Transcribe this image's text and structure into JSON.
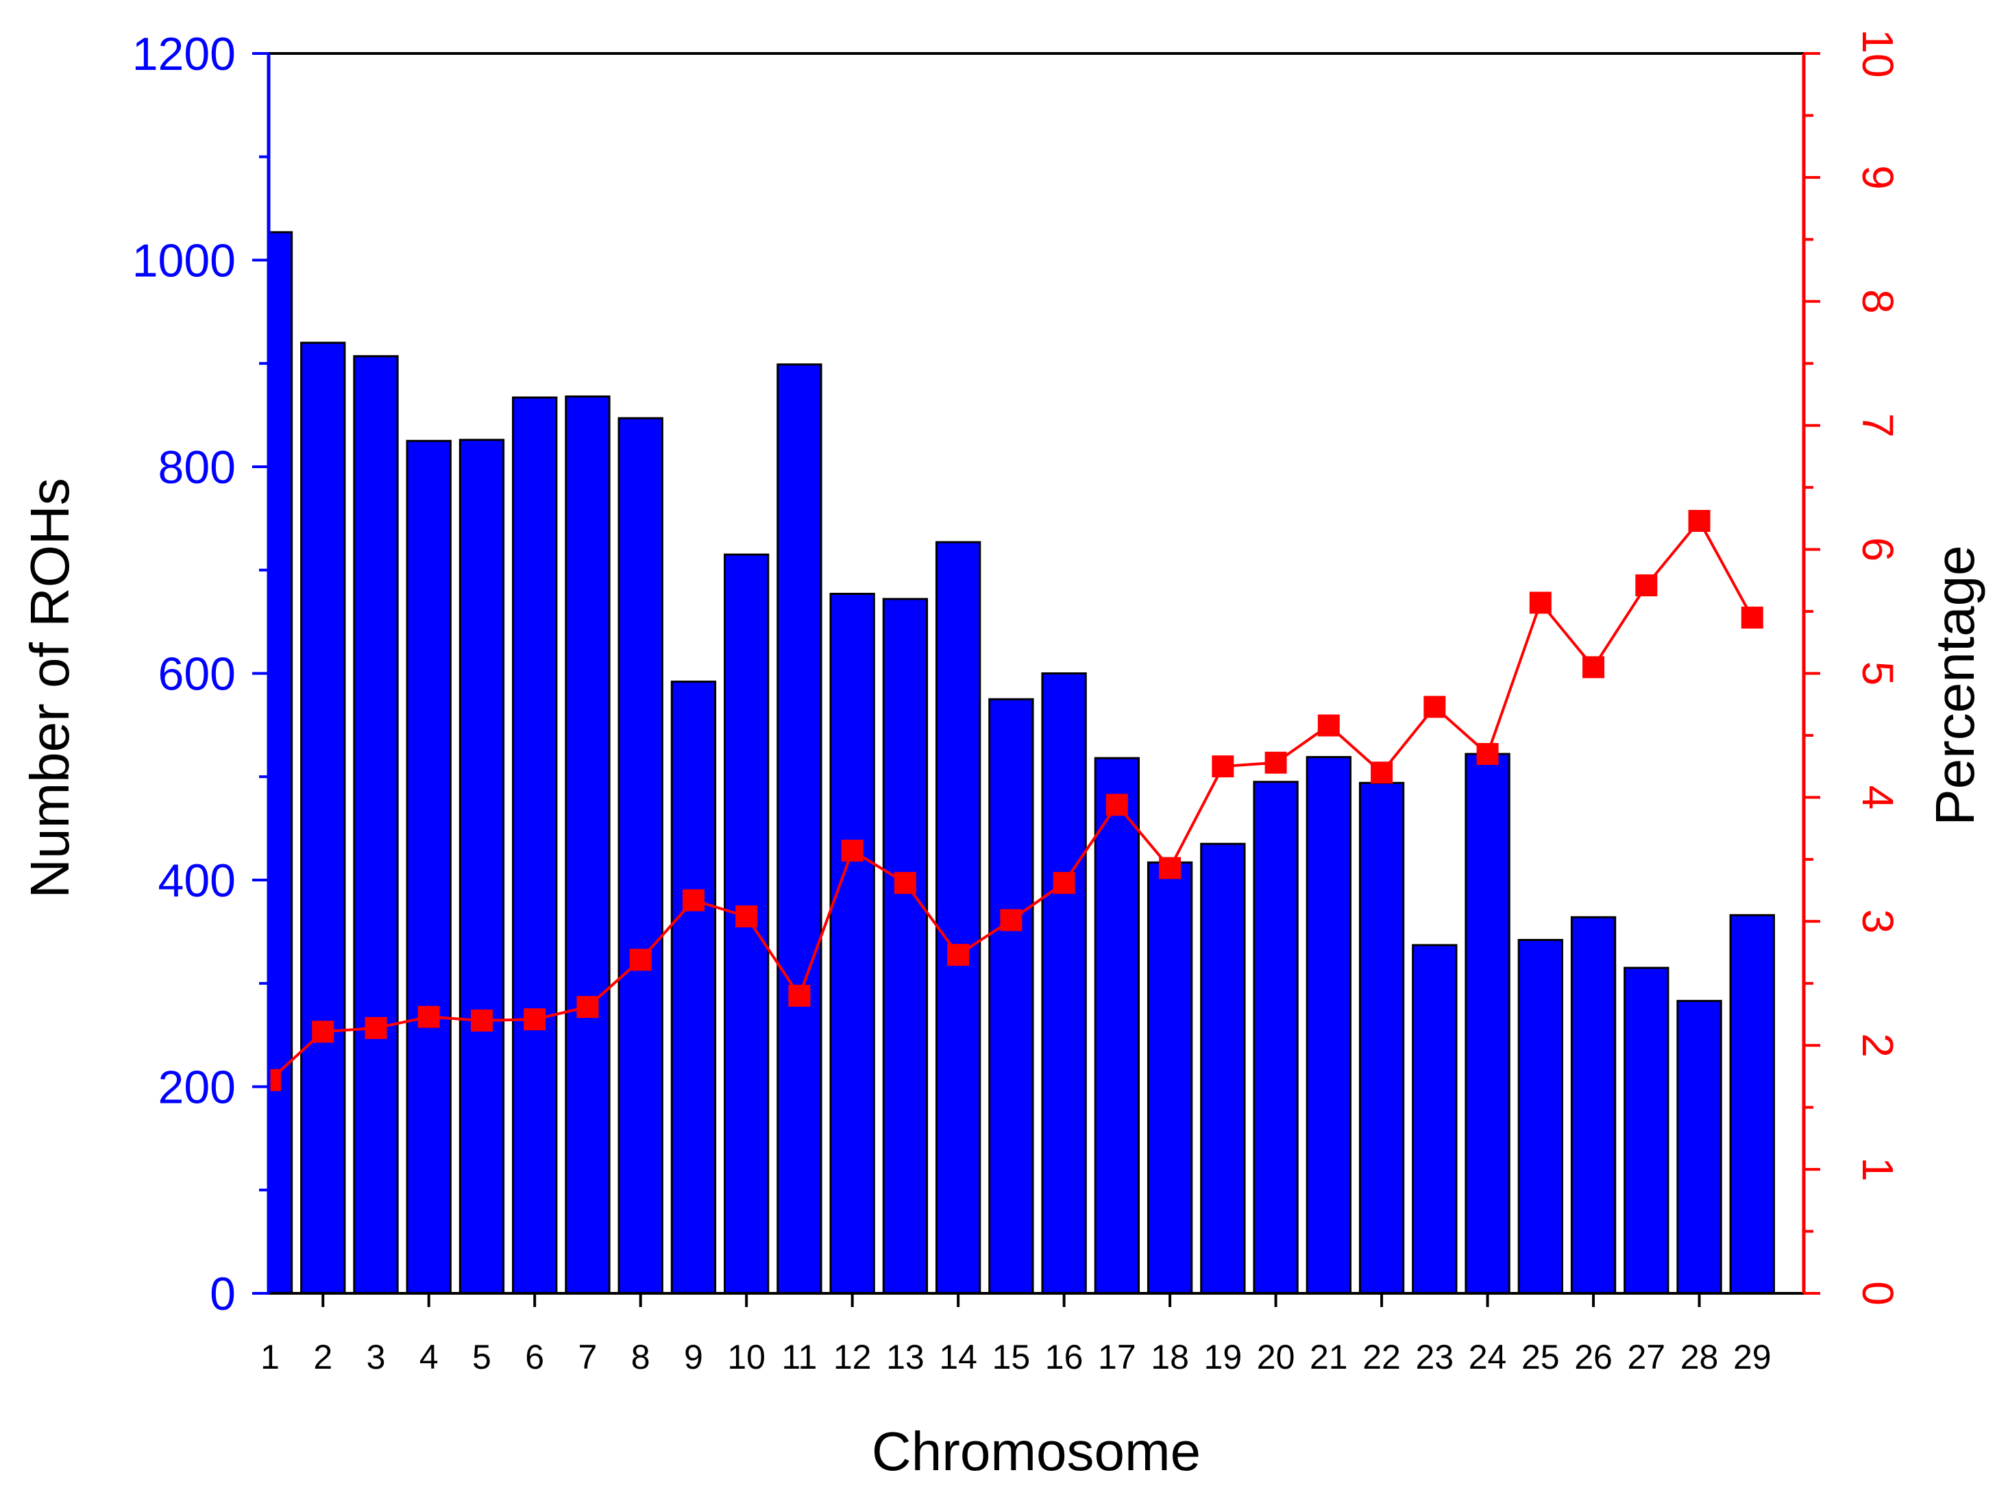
{
  "chart_data": {
    "type": "bar",
    "xlabel": "Chromosome",
    "ylabel_left": "Number of ROHs",
    "ylabel_right": "Percentage",
    "categories": [
      "1",
      "2",
      "3",
      "4",
      "5",
      "6",
      "7",
      "8",
      "9",
      "10",
      "11",
      "12",
      "13",
      "14",
      "15",
      "16",
      "17",
      "18",
      "19",
      "20",
      "21",
      "22",
      "23",
      "24",
      "25",
      "26",
      "27",
      "28",
      "29"
    ],
    "ylim_left": [
      0,
      1200
    ],
    "yticks_left": [
      "0",
      "200",
      "400",
      "600",
      "800",
      "1000",
      "1200"
    ],
    "ylim_right": [
      0,
      10
    ],
    "yticks_right": [
      "0",
      "1",
      "2",
      "3",
      "4",
      "5",
      "6",
      "7",
      "8",
      "9",
      "10"
    ],
    "series": [
      {
        "kind": "bar",
        "axis": "left",
        "color": "#0000ff",
        "values": [
          1027,
          920,
          907,
          825,
          826,
          867,
          868,
          847,
          592,
          715,
          899,
          677,
          672,
          727,
          575,
          600,
          518,
          417,
          435,
          495,
          519,
          494,
          337,
          522,
          342,
          364,
          315,
          283,
          366
        ]
      },
      {
        "kind": "line",
        "axis": "right",
        "color": "#ff0000",
        "marker": "square",
        "values": [
          1.72,
          2.11,
          2.14,
          2.23,
          2.2,
          2.21,
          2.31,
          2.69,
          3.17,
          3.04,
          2.4,
          3.57,
          3.31,
          2.73,
          3.01,
          3.31,
          3.94,
          3.43,
          4.25,
          4.28,
          4.58,
          4.2,
          4.73,
          4.35,
          5.57,
          5.05,
          5.71,
          6.23,
          5.45
        ]
      }
    ],
    "grid": false,
    "legend": "none",
    "colors": {
      "left_axis": "#0000ff",
      "right_axis": "#ff0000",
      "frame": "#000000"
    }
  }
}
